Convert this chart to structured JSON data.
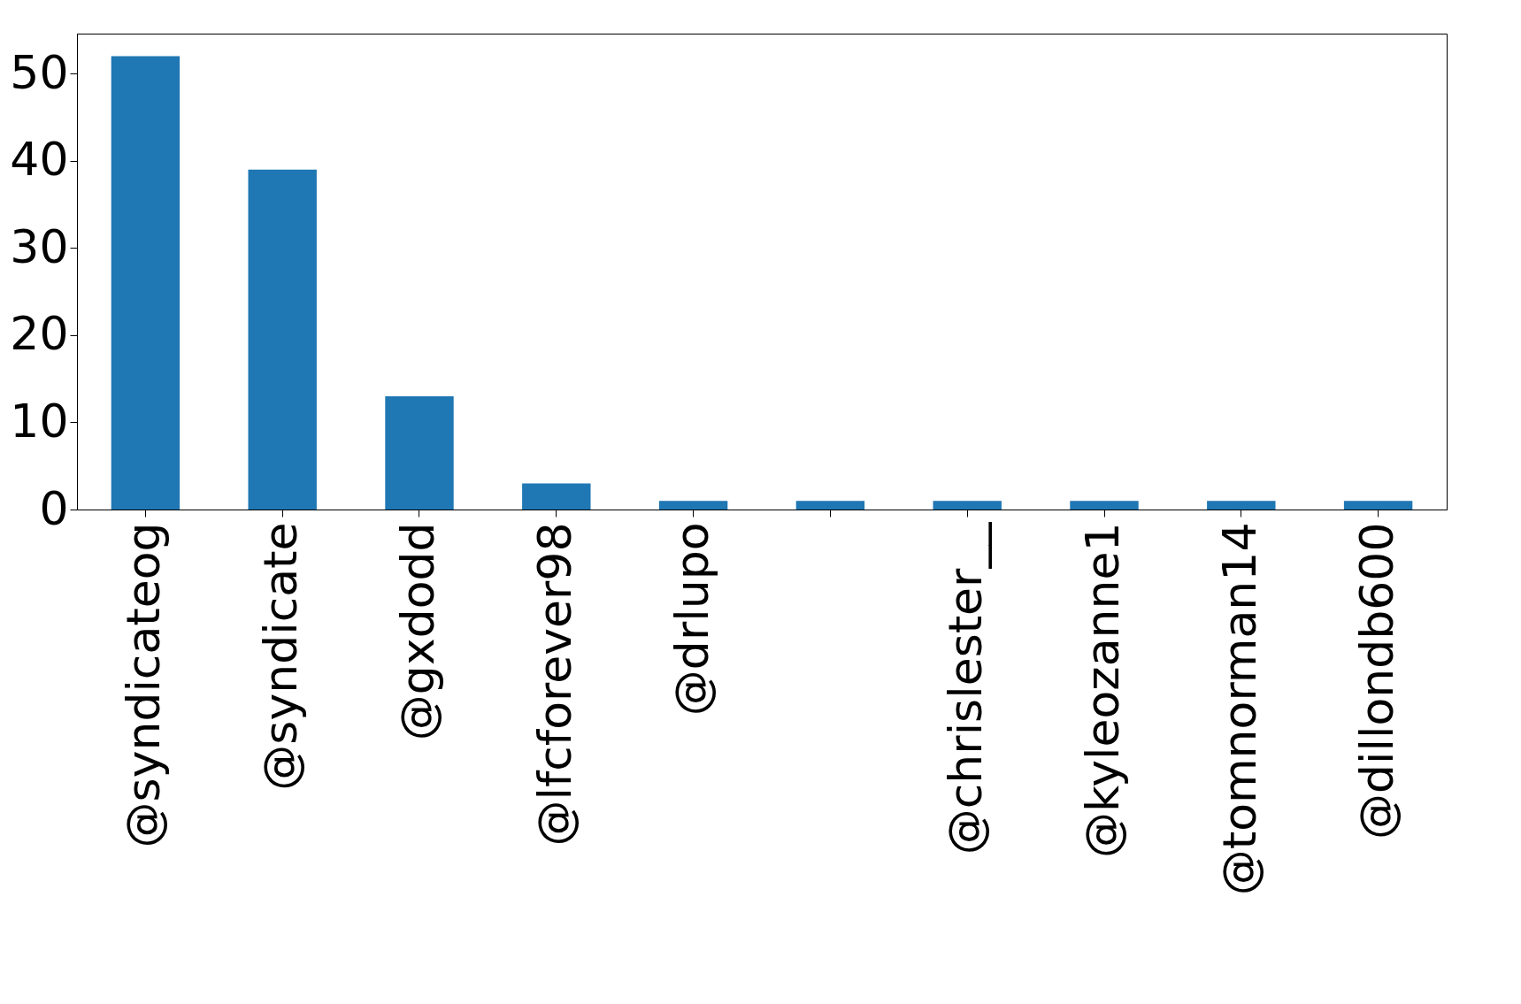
{
  "chart_data": {
    "type": "bar",
    "categories": [
      "@syndicateog",
      "@syndicate",
      "@gxdodd",
      "@lfcforever98",
      "@drlupo",
      null,
      "@chrislester__",
      "@kyleozanne1",
      "@tomnorman14",
      "@dillondb600"
    ],
    "values": [
      52,
      39,
      13,
      3,
      1,
      1,
      1,
      1,
      1,
      1
    ],
    "color": "#1f77b4",
    "ylim": [
      0,
      54.6
    ],
    "yticks": [
      0,
      10,
      20,
      30,
      40,
      50
    ],
    "grid": false
  }
}
